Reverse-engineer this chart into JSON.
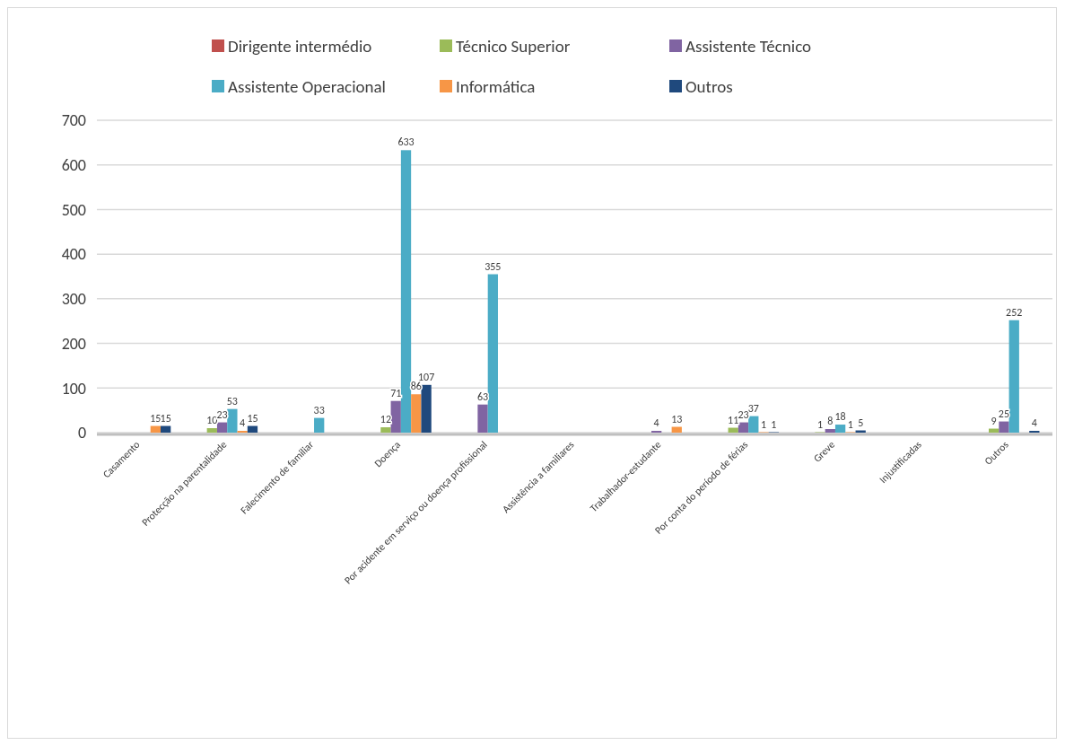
{
  "chart_data": {
    "type": "bar",
    "categories": [
      "Casamento",
      "Protecção na parentalidade",
      "Falecimento de familiar",
      "Doença",
      "Por acidente em serviço ou doença profissional",
      "Assistência a familiares",
      "Trabalhador-estudante",
      "Por conta do período de férias",
      "Greve",
      "Injustificadas",
      "Outros"
    ],
    "series": [
      {
        "name": "Dirigente intermédio",
        "color": "#c0504d",
        "values": [
          null,
          null,
          null,
          null,
          null,
          null,
          null,
          null,
          null,
          null,
          null
        ]
      },
      {
        "name": "Técnico Superior",
        "color": "#9bbb59",
        "values": [
          null,
          10,
          null,
          12,
          null,
          null,
          null,
          11,
          1,
          null,
          9
        ]
      },
      {
        "name": "Assistente Técnico",
        "color": "#8064a2",
        "values": [
          null,
          23,
          null,
          71,
          63,
          null,
          4,
          23,
          8,
          null,
          25
        ]
      },
      {
        "name": "Assistente Operacional",
        "color": "#4bacc6",
        "values": [
          null,
          53,
          33,
          633,
          355,
          null,
          null,
          37,
          18,
          null,
          252
        ]
      },
      {
        "name": "Informática",
        "color": "#f79646",
        "values": [
          15,
          4,
          null,
          86,
          null,
          null,
          13,
          1,
          1,
          null,
          null
        ]
      },
      {
        "name": "Outros",
        "color": "#1f497d",
        "values": [
          15,
          15,
          null,
          107,
          null,
          null,
          null,
          1,
          5,
          null,
          4
        ]
      }
    ],
    "ylim": [
      0,
      700
    ],
    "yticks": [
      0,
      100,
      200,
      300,
      400,
      500,
      600,
      700
    ],
    "grid": "y",
    "legend": "top",
    "data_labels": true
  }
}
